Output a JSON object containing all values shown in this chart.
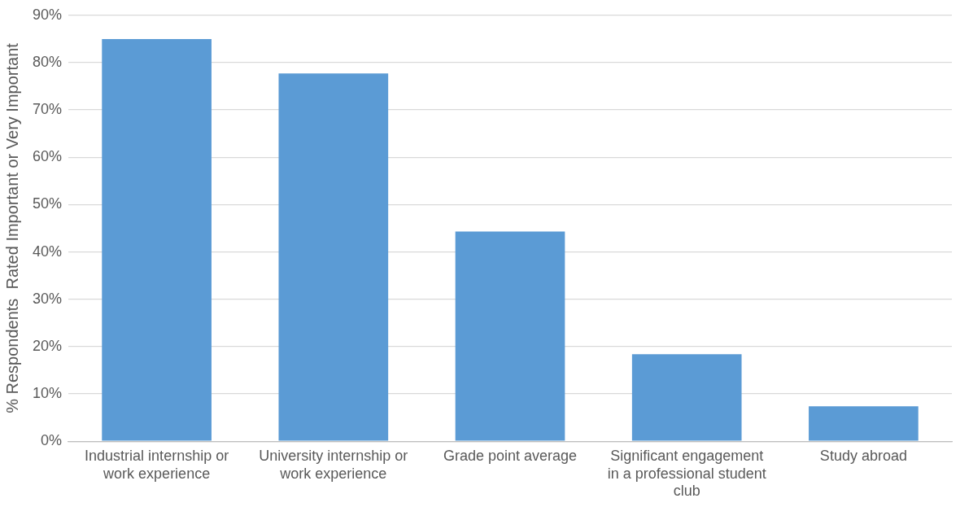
{
  "chart_data": {
    "type": "bar",
    "ylabel": "% Respondents  Rated Important or Very Important",
    "categories": [
      "Industrial internship or work experience",
      "University internship or work experience",
      "Grade point average",
      "Significant engagement in a professional student club",
      "Study abroad"
    ],
    "values": [
      85,
      77.7,
      44.3,
      18.4,
      7.4
    ],
    "color": "#5b9bd5",
    "ylim": [
      0,
      90
    ],
    "yticks": [
      {
        "value": 0,
        "label": "0%"
      },
      {
        "value": 10,
        "label": "10%"
      },
      {
        "value": 20,
        "label": "20%"
      },
      {
        "value": 30,
        "label": "30%"
      },
      {
        "value": 40,
        "label": "40%"
      },
      {
        "value": 50,
        "label": "50%"
      },
      {
        "value": 60,
        "label": "60%"
      },
      {
        "value": 70,
        "label": "70%"
      },
      {
        "value": 80,
        "label": "80%"
      },
      {
        "value": 90,
        "label": "90%"
      }
    ],
    "grid": "y",
    "legend": false
  }
}
